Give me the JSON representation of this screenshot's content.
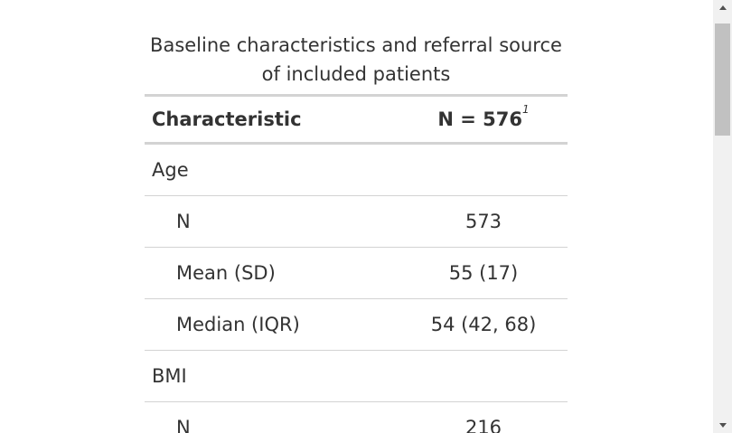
{
  "caption": {
    "line1": "Baseline characteristics and referral source",
    "line2": "of included patients"
  },
  "table": {
    "header": {
      "characteristic": "Characteristic",
      "n": "N = 576",
      "footnote_mark": "1"
    },
    "rows": [
      {
        "label": "Age",
        "value": "",
        "indent": false
      },
      {
        "label": "N",
        "value": "573",
        "indent": true
      },
      {
        "label": "Mean (SD)",
        "value": "55 (17)",
        "indent": true
      },
      {
        "label": "Median (IQR)",
        "value": "54 (42, 68)",
        "indent": true
      },
      {
        "label": "BMI",
        "value": "",
        "indent": false
      },
      {
        "label": "N",
        "value": "216",
        "indent": true
      }
    ]
  },
  "scrollbar": {
    "up_icon": "chevron-up-icon",
    "down_icon": "chevron-down-icon"
  }
}
